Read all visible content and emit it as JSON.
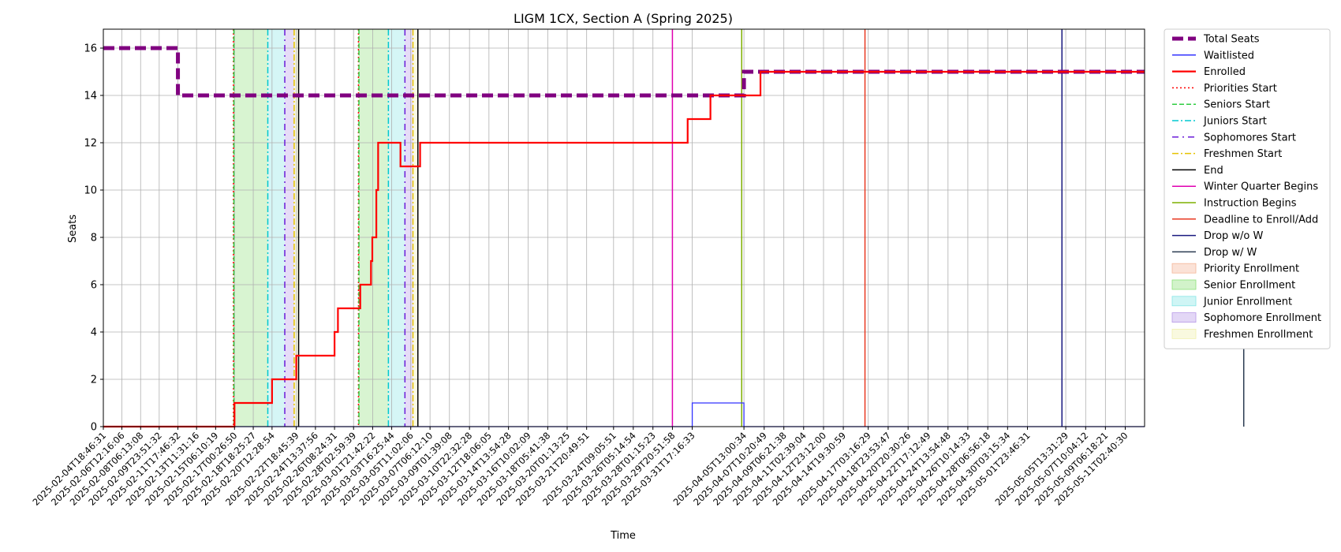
{
  "chart_data": {
    "type": "line",
    "title": "LIGM 1CX, Section A (Spring 2025)",
    "xlabel": "Time",
    "ylabel": "Seats",
    "ylim": [
      0,
      16.8
    ],
    "yticks": [
      0,
      2,
      4,
      6,
      8,
      10,
      12,
      14,
      16
    ],
    "grid": true,
    "legend_position": "outside-right",
    "x_range": [
      "2025-02-04T18:46:31",
      "2025-05-12T22:00:00"
    ],
    "x_ticks": [
      "2025-02-04T18:46:31",
      "2025-02-06T12:16:06",
      "2025-02-08T06:13:08",
      "2025-02-09T23:51:32",
      "2025-02-11T17:46:32",
      "2025-02-13T11:31:16",
      "2025-02-15T06:10:19",
      "2025-02-17T00:26:50",
      "2025-02-18T18:25:27",
      "2025-02-20T12:28:54",
      "2025-02-22T18:45:39",
      "2025-02-24T13:37:56",
      "2025-02-26T08:24:31",
      "2025-02-28T02:59:39",
      "2025-03-01T21:42:22",
      "2025-03-03T16:25:44",
      "2025-03-05T11:02:06",
      "2025-03-07T06:12:10",
      "2025-03-09T01:39:08",
      "2025-03-10T22:32:28",
      "2025-03-12T18:06:05",
      "2025-03-14T13:54:28",
      "2025-03-16T10:02:09",
      "2025-03-18T05:41:38",
      "2025-03-20T01:13:25",
      "2025-03-21T20:49:51",
      "2025-03-24T09:05:51",
      "2025-03-26T05:14:54",
      "2025-03-28T01:15:23",
      "2025-03-29T20:51:58",
      "2025-03-31T17:16:33",
      "2025-04-05T13:00:34",
      "2025-04-07T10:20:49",
      "2025-04-09T06:21:38",
      "2025-04-11T02:39:04",
      "2025-04-12T23:12:00",
      "2025-04-14T19:30:59",
      "2025-04-17T03:16:29",
      "2025-04-18T23:53:47",
      "2025-04-20T20:30:26",
      "2025-04-22T17:12:49",
      "2025-04-24T13:54:48",
      "2025-04-26T10:14:33",
      "2025-04-28T06:56:18",
      "2025-04-30T03:15:34",
      "2025-05-01T23:46:31",
      "2025-05-05T13:31:29",
      "2025-05-07T10:04:12",
      "2025-05-09T06:18:21",
      "2025-05-11T02:40:30"
    ],
    "series": [
      {
        "name": "Total Seats",
        "color": "#800080",
        "style": "dashed-thick",
        "points": [
          [
            "2025-02-04T18:46:31",
            16
          ],
          [
            "2025-02-11T17:46:32",
            16
          ],
          [
            "2025-02-11T17:46:32",
            14
          ],
          [
            "2025-04-05T13:00:34",
            14
          ],
          [
            "2025-04-05T13:00:34",
            15
          ],
          [
            "2025-05-12T22:00:00",
            15
          ]
        ]
      },
      {
        "name": "Waitlisted",
        "color": "#3333ff",
        "style": "solid-thin",
        "points": [
          [
            "2025-02-04T18:46:31",
            0
          ],
          [
            "2025-03-31T17:16:33",
            0
          ],
          [
            "2025-03-31T17:16:33",
            1
          ],
          [
            "2025-04-05T13:00:34",
            1
          ],
          [
            "2025-04-05T13:00:34",
            0
          ],
          [
            "2025-05-12T22:00:00",
            0
          ]
        ]
      },
      {
        "name": "Enrolled",
        "color": "#ff0000",
        "style": "solid-thick",
        "points": [
          [
            "2025-02-04T18:46:31",
            0
          ],
          [
            "2025-02-17T00:26:50",
            0
          ],
          [
            "2025-02-17T00:26:50",
            1
          ],
          [
            "2025-02-20T12:28:54",
            1
          ],
          [
            "2025-02-20T12:28:54",
            2
          ],
          [
            "2025-02-22T18:45:39",
            2
          ],
          [
            "2025-02-22T18:45:39",
            3
          ],
          [
            "2025-02-26T08:24:31",
            3
          ],
          [
            "2025-02-26T08:24:31",
            4
          ],
          [
            "2025-02-26T16:00:00",
            4
          ],
          [
            "2025-02-26T16:00:00",
            5
          ],
          [
            "2025-02-28T18:00:00",
            5
          ],
          [
            "2025-02-28T18:00:00",
            6
          ],
          [
            "2025-03-01T18:00:00",
            6
          ],
          [
            "2025-03-01T18:00:00",
            7
          ],
          [
            "2025-03-01T21:00:00",
            7
          ],
          [
            "2025-03-01T21:00:00",
            8
          ],
          [
            "2025-03-02T06:00:00",
            8
          ],
          [
            "2025-03-02T06:00:00",
            10
          ],
          [
            "2025-03-02T10:00:00",
            10
          ],
          [
            "2025-03-02T10:00:00",
            12
          ],
          [
            "2025-03-04T12:00:00",
            12
          ],
          [
            "2025-03-04T12:00:00",
            11
          ],
          [
            "2025-03-06T08:00:00",
            11
          ],
          [
            "2025-03-06T08:00:00",
            12
          ],
          [
            "2025-03-31T07:00:00",
            12
          ],
          [
            "2025-03-31T07:00:00",
            13
          ],
          [
            "2025-04-02T10:00:00",
            13
          ],
          [
            "2025-04-02T10:00:00",
            14
          ],
          [
            "2025-04-07T02:00:00",
            14
          ],
          [
            "2025-04-07T02:00:00",
            15
          ],
          [
            "2025-05-12T22:00:00",
            15
          ]
        ]
      }
    ],
    "vertical_lines": [
      {
        "name": "Priorities Start",
        "color": "#ff0000",
        "style": "dotted",
        "dates": [
          "2025-02-16T22:00:00",
          "2025-02-28T14:00:00"
        ]
      },
      {
        "name": "Seniors Start",
        "color": "#2ecc40",
        "style": "dashed",
        "dates": [
          "2025-02-16T23:00:00",
          "2025-02-28T15:00:00"
        ]
      },
      {
        "name": "Juniors Start",
        "color": "#00c8d0",
        "style": "dashdot",
        "dates": [
          "2025-02-20T03:00:00",
          "2025-03-03T09:00:00"
        ]
      },
      {
        "name": "Sophomores Start",
        "color": "#6a1bd8",
        "style": "dashdot-loose",
        "dates": [
          "2025-02-21T17:00:00",
          "2025-03-04T22:00:00"
        ]
      },
      {
        "name": "Freshmen Start",
        "color": "#e6c200",
        "style": "dashdot",
        "dates": [
          "2025-02-22T14:00:00",
          "2025-03-05T16:00:00"
        ]
      },
      {
        "name": "End",
        "color": "#000000",
        "style": "solid",
        "dates": [
          "2025-02-23T00:00:00",
          "2025-03-06T03:00:00"
        ]
      },
      {
        "name": "Winter Quarter Begins",
        "color": "#e000b0",
        "style": "solid",
        "dates": [
          "2025-03-29T20:51:58"
        ]
      },
      {
        "name": "Instruction Begins",
        "color": "#7fb000",
        "style": "solid",
        "dates": [
          "2025-04-05T08:00:00"
        ]
      },
      {
        "name": "Deadline to Enroll/Add",
        "color": "#e83820",
        "style": "solid",
        "dates": [
          "2025-04-16T20:00:00"
        ]
      },
      {
        "name": "Drop w/o W",
        "color": "#1a1a80",
        "style": "solid",
        "dates": [
          "2025-05-05T05:00:00"
        ]
      },
      {
        "name": "Drop w/ W",
        "color": "#2a3a50",
        "style": "solid",
        "dates": [
          "2025-05-22T04:00:00"
        ]
      }
    ],
    "shaded_regions": [
      {
        "name": "Priority Enrollment",
        "color": "#f5b79a",
        "ranges": [
          [
            "2025-02-16T22:00:00",
            "2025-02-16T23:00:00"
          ],
          [
            "2025-02-28T14:00:00",
            "2025-02-28T15:00:00"
          ]
        ]
      },
      {
        "name": "Senior Enrollment",
        "color": "#8ee07a",
        "ranges": [
          [
            "2025-02-16T23:00:00",
            "2025-02-20T03:00:00"
          ],
          [
            "2025-02-28T15:00:00",
            "2025-03-03T09:00:00"
          ]
        ]
      },
      {
        "name": "Junior Enrollment",
        "color": "#88e6e6",
        "ranges": [
          [
            "2025-02-20T03:00:00",
            "2025-02-21T17:00:00"
          ],
          [
            "2025-03-03T09:00:00",
            "2025-03-04T22:00:00"
          ]
        ]
      },
      {
        "name": "Sophomore Enrollment",
        "color": "#b89ae8",
        "ranges": [
          [
            "2025-02-21T17:00:00",
            "2025-02-22T14:00:00"
          ],
          [
            "2025-03-04T22:00:00",
            "2025-03-05T16:00:00"
          ]
        ]
      },
      {
        "name": "Freshmen Enrollment",
        "color": "#f0f0b0",
        "ranges": [
          [
            "2025-02-22T14:00:00",
            "2025-02-23T00:00:00"
          ],
          [
            "2025-03-05T16:00:00",
            "2025-03-06T03:00:00"
          ]
        ]
      }
    ],
    "legend": [
      {
        "label": "Total Seats",
        "kind": "line",
        "color": "#800080",
        "style": "dashed-thick"
      },
      {
        "label": "Waitlisted",
        "kind": "line",
        "color": "#3333ff",
        "style": "solid-thin"
      },
      {
        "label": "Enrolled",
        "kind": "line",
        "color": "#ff0000",
        "style": "solid-thick"
      },
      {
        "label": "Priorities Start",
        "kind": "line",
        "color": "#ff0000",
        "style": "dotted"
      },
      {
        "label": "Seniors Start",
        "kind": "line",
        "color": "#2ecc40",
        "style": "dashed"
      },
      {
        "label": "Juniors Start",
        "kind": "line",
        "color": "#00c8d0",
        "style": "dashdot"
      },
      {
        "label": "Sophomores Start",
        "kind": "line",
        "color": "#6a1bd8",
        "style": "dashdot-loose"
      },
      {
        "label": "Freshmen Start",
        "kind": "line",
        "color": "#e6c200",
        "style": "dashdot"
      },
      {
        "label": "End",
        "kind": "line",
        "color": "#000000",
        "style": "solid"
      },
      {
        "label": "Winter Quarter Begins",
        "kind": "line",
        "color": "#e000b0",
        "style": "solid"
      },
      {
        "label": "Instruction Begins",
        "kind": "line",
        "color": "#7fb000",
        "style": "solid"
      },
      {
        "label": "Deadline to Enroll/Add",
        "kind": "line",
        "color": "#e83820",
        "style": "solid"
      },
      {
        "label": "Drop w/o W",
        "kind": "line",
        "color": "#1a1a80",
        "style": "solid"
      },
      {
        "label": "Drop w/ W",
        "kind": "line",
        "color": "#2a3a50",
        "style": "solid"
      },
      {
        "label": "Priority Enrollment",
        "kind": "patch",
        "color": "#f5b79a"
      },
      {
        "label": "Senior Enrollment",
        "kind": "patch",
        "color": "#8ee07a"
      },
      {
        "label": "Junior Enrollment",
        "kind": "patch",
        "color": "#88e6e6"
      },
      {
        "label": "Sophomore Enrollment",
        "kind": "patch",
        "color": "#b89ae8"
      },
      {
        "label": "Freshmen Enrollment",
        "kind": "patch",
        "color": "#f0f0b0"
      }
    ]
  }
}
